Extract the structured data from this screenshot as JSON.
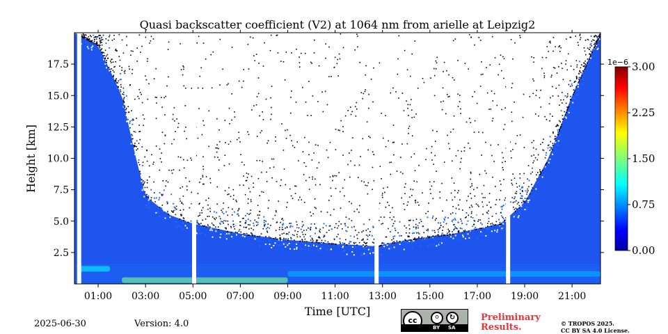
{
  "chart_data": {
    "type": "heatmap",
    "title": "Quasi backscatter coefficient (V2) at 1064 nm from arielle at Leipzig2",
    "xlabel": "Time [UTC]",
    "ylabel": "Height [km]",
    "xlim_hours": [
      0,
      22.2
    ],
    "ylim_km": [
      0,
      20
    ],
    "x_tick_labels": [
      "01:00",
      "03:00",
      "05:00",
      "07:00",
      "09:00",
      "11:00",
      "13:00",
      "15:00",
      "17:00",
      "19:00",
      "21:00"
    ],
    "x_tick_hours": [
      1,
      3,
      5,
      7,
      9,
      11,
      13,
      15,
      17,
      19,
      21
    ],
    "y_tick_labels": [
      "2.5",
      "5.0",
      "7.5",
      "10.0",
      "12.5",
      "15.0",
      "17.5"
    ],
    "y_tick_values": [
      2.5,
      5.0,
      7.5,
      10.0,
      12.5,
      15.0,
      17.5
    ],
    "colorbar": {
      "scale_label": "1e−6",
      "min": 0.0,
      "max": 3.0,
      "tick_labels": [
        "0.00",
        "0.75",
        "1.50",
        "2.25",
        "3.00"
      ],
      "tick_values": [
        0.0,
        0.75,
        1.5,
        2.25,
        3.0
      ],
      "colormap": "jet"
    },
    "data_gaps_hours": [
      0.2,
      5.05,
      12.75,
      18.3
    ],
    "signal_top_km": [
      {
        "hour": 0.0,
        "km": 20
      },
      {
        "hour": 1.0,
        "km": 19
      },
      {
        "hour": 2.0,
        "km": 15
      },
      {
        "hour": 2.6,
        "km": 10
      },
      {
        "hour": 3.0,
        "km": 7
      },
      {
        "hour": 4.0,
        "km": 5.5
      },
      {
        "hour": 5.0,
        "km": 4.8
      },
      {
        "hour": 7.0,
        "km": 4
      },
      {
        "hour": 9.0,
        "km": 3.5
      },
      {
        "hour": 11.0,
        "km": 3.2
      },
      {
        "hour": 12.7,
        "km": 3.0
      },
      {
        "hour": 14.0,
        "km": 3.5
      },
      {
        "hour": 16.0,
        "km": 4.0
      },
      {
        "hour": 18.0,
        "km": 4.8
      },
      {
        "hour": 19.0,
        "km": 6.5
      },
      {
        "hour": 20.0,
        "km": 10
      },
      {
        "hour": 21.0,
        "km": 15
      },
      {
        "hour": 22.2,
        "km": 20
      }
    ],
    "boundary_layer_features": [
      {
        "desc": "aerosol layer",
        "hour_start": 0.2,
        "hour_end": 1.5,
        "km": 1.2,
        "value": 1.1
      },
      {
        "desc": "near-surface layer",
        "hour_start": 2.0,
        "hour_end": 9.0,
        "km": 0.3,
        "value": 1.5
      },
      {
        "desc": "lower layer",
        "hour_start": 9.0,
        "hour_end": 22.2,
        "km": 0.8,
        "value": 0.9
      }
    ]
  },
  "footer": {
    "date": "2025-06-30",
    "version": "Version: 4.0",
    "cc_by": "BY",
    "cc_sa": "SA",
    "cc_logo": "cc",
    "preliminary_line1": "Preliminary",
    "preliminary_line2": "Results.",
    "license_line1": "© TROPOS 2025.",
    "license_line2": "CC BY SA 4.0 License."
  },
  "colors": {
    "accent_red": "#e8333a"
  }
}
